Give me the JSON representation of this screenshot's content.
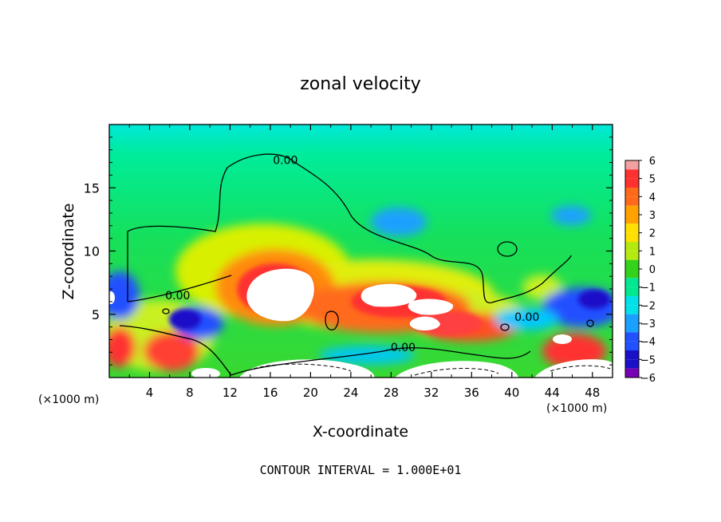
{
  "chart_data": {
    "type": "heatmap",
    "title": "zonal velocity",
    "xlabel": "X-coordinate",
    "ylabel": "Z-coordinate",
    "x_unit_left": "(×1000 m)",
    "x_unit_right": "(×1000 m)",
    "footer": "CONTOUR INTERVAL = 1.000E+01",
    "xlim": [
      0,
      50
    ],
    "ylim": [
      0,
      20
    ],
    "x_ticks": [
      "4",
      "8",
      "12",
      "16",
      "20",
      "24",
      "28",
      "32",
      "36",
      "40",
      "44",
      "48"
    ],
    "x_tick_values": [
      4,
      8,
      12,
      16,
      20,
      24,
      28,
      32,
      36,
      40,
      44,
      48
    ],
    "y_ticks": [
      "5",
      "10",
      "15"
    ],
    "y_tick_values": [
      5,
      10,
      15
    ],
    "colorbar": {
      "labels": [
        "6",
        "5",
        "4",
        "3",
        "2",
        "1",
        "0",
        "−1",
        "−2",
        "−3",
        "−4",
        "−5",
        "−6"
      ],
      "colors": [
        "#f2a0a0",
        "#ff3030",
        "#ff6a1a",
        "#ffa200",
        "#ffe000",
        "#b4ea10",
        "#34d21a",
        "#00e890",
        "#00e2e8",
        "#1aa0ff",
        "#2050ff",
        "#1a10c8",
        "#7800b4"
      ]
    },
    "contour_labels": [
      {
        "text": "0.00",
        "x": 17.5,
        "z": 17.2
      },
      {
        "text": "0.00",
        "x": 6.8,
        "z": 6.5
      },
      {
        "text": "0.00",
        "x": 29.2,
        "z": 2.4
      },
      {
        "text": "0.00",
        "x": 41.5,
        "z": 4.8
      }
    ]
  }
}
